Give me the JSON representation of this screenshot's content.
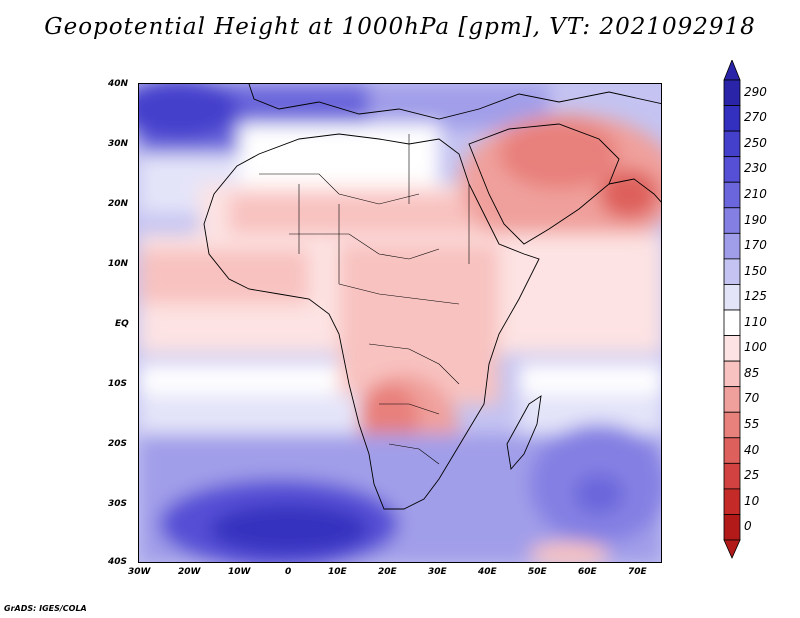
{
  "title": "Geopotential Height at 1000hPa [gpm], VT: 2021092918",
  "credit": "GrADS: IGES/COLA",
  "map": {
    "variable": "Geopotential Height",
    "level": "1000hPa",
    "units": "gpm",
    "valid_time": "2021092918",
    "lon_labels": [
      "30W",
      "20W",
      "10W",
      "0",
      "10E",
      "20E",
      "30E",
      "40E",
      "50E",
      "60E",
      "70E"
    ],
    "lat_labels": [
      "40N",
      "30N",
      "20N",
      "10N",
      "EQ",
      "10S",
      "20S",
      "30S",
      "40S"
    ]
  },
  "colorbar": {
    "labels": [
      "290",
      "270",
      "250",
      "230",
      "210",
      "190",
      "170",
      "150",
      "125",
      "110",
      "100",
      "85",
      "70",
      "55",
      "40",
      "25",
      "10",
      "0"
    ],
    "colors": [
      "#2a24a8",
      "#3430bf",
      "#4540cc",
      "#5650d6",
      "#6b66dc",
      "#8480e3",
      "#a19ee9",
      "#c4c3f1",
      "#e4e4f9",
      "#ffffff",
      "#fde3e3",
      "#f8c2c0",
      "#f0a09c",
      "#e8807c",
      "#de605c",
      "#d24240",
      "#c42a28",
      "#b21a1a"
    ]
  }
}
